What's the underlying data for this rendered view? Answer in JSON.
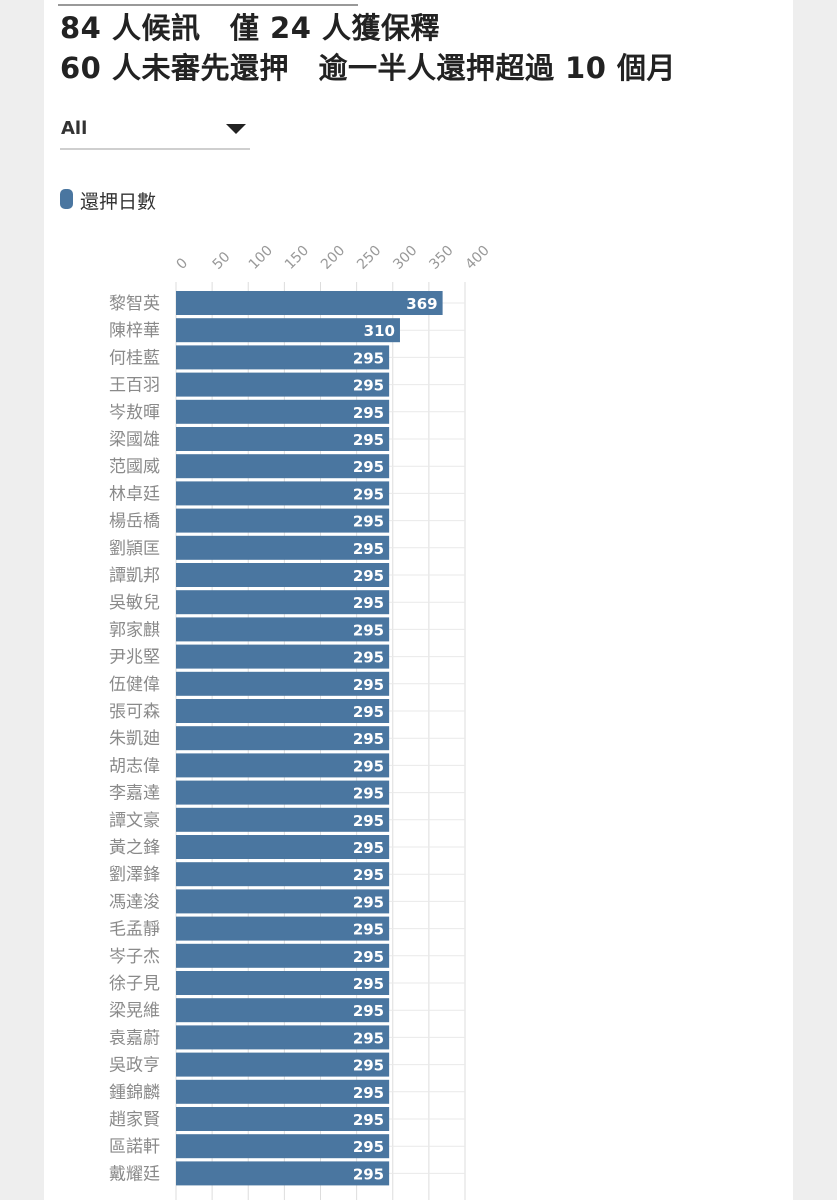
{
  "header": {
    "title_line1": "84 人候訊　僅 24 人獲保釋",
    "title_line2": "60 人未審先還押　逾一半人還押超過 10 個月"
  },
  "filter": {
    "selected": "All"
  },
  "colors": {
    "bar": "#4a76a0",
    "grid": "#dddddd",
    "tick": "#999999",
    "name": "#8a8a8a",
    "label": "#ffffff"
  },
  "chart_data": {
    "type": "bar",
    "orientation": "horizontal",
    "legend": [
      "還押日數"
    ],
    "legend_position": "top-left",
    "xlim": [
      0,
      400
    ],
    "ticks": [
      "0",
      "50",
      "100",
      "150",
      "200",
      "250",
      "300",
      "350",
      "400"
    ],
    "grid": true,
    "series": [
      {
        "name": "還押日數",
        "categories": [
          "黎智英",
          "陳梓華",
          "何桂藍",
          "王百羽",
          "岑敖暉",
          "梁國雄",
          "范國威",
          "林卓廷",
          "楊岳橋",
          "劉頴匡",
          "譚凱邦",
          "吳敏兒",
          "郭家麒",
          "尹兆堅",
          "伍健偉",
          "張可森",
          "朱凱廸",
          "胡志偉",
          "李嘉達",
          "譚文豪",
          "黃之鋒",
          "劉澤鋒",
          "馮達浚",
          "毛孟靜",
          "岑子杰",
          "徐子見",
          "梁晃維",
          "袁嘉蔚",
          "吳政亨",
          "鍾錦麟",
          "趙家賢",
          "區諾軒",
          "戴耀廷"
        ],
        "values": [
          369,
          310,
          295,
          295,
          295,
          295,
          295,
          295,
          295,
          295,
          295,
          295,
          295,
          295,
          295,
          295,
          295,
          295,
          295,
          295,
          295,
          295,
          295,
          295,
          295,
          295,
          295,
          295,
          295,
          295,
          295,
          295,
          295
        ]
      }
    ]
  }
}
